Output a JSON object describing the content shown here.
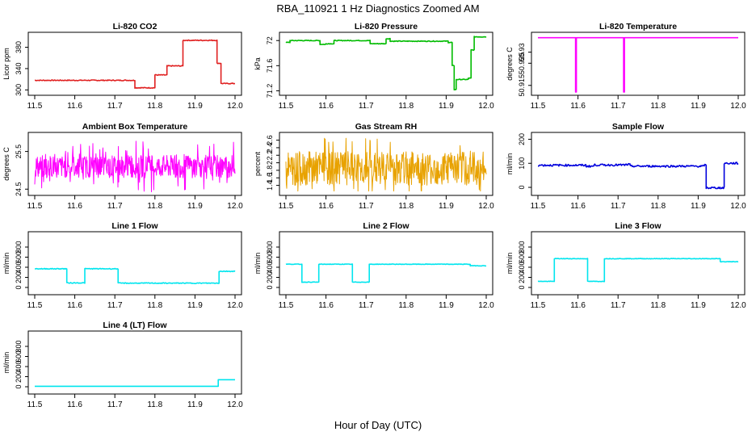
{
  "page": {
    "title": "RBA_110921  1 Hz Diagnostics Zoomed AM",
    "xlabel": "Hour of Day (UTC)"
  },
  "colors": {
    "red": "#e02020",
    "green": "#00bb00",
    "magenta": "#ff00ff",
    "orange": "#e8a200",
    "blue": "#0000dd",
    "cyan": "#00e5ee"
  },
  "chart_data": [
    {
      "type": "line",
      "title": "Li-820 CO2",
      "ylabel": "Licor ppm",
      "color": "#e02020",
      "xlim": [
        11.5,
        12.0
      ],
      "xticks": [
        11.5,
        11.6,
        11.7,
        11.8,
        11.9,
        12.0
      ],
      "ylim": [
        296,
        402
      ],
      "yticks": [
        300,
        340,
        380
      ],
      "series": [
        {
          "kind": "step",
          "noise": 0.8,
          "x": [
            11.5,
            11.75,
            11.8,
            11.83,
            11.87,
            11.955,
            11.965,
            12.0
          ],
          "y": [
            318,
            304,
            328,
            345,
            393,
            350,
            312,
            312
          ]
        }
      ]
    },
    {
      "type": "line",
      "title": "Li-820 Pressure",
      "ylabel": "kPa",
      "color": "#00bb00",
      "xlim": [
        11.5,
        12.0
      ],
      "xticks": [
        11.5,
        11.6,
        11.7,
        11.8,
        11.9,
        12.0
      ],
      "ylim": [
        71.18,
        72.08
      ],
      "yticks": [
        71.2,
        71.6,
        72.0
      ],
      "series": [
        {
          "kind": "step",
          "noise": 0.006,
          "x": [
            11.5,
            11.51,
            11.585,
            11.6,
            11.62,
            11.71,
            11.75,
            11.76,
            11.905,
            11.915,
            11.92,
            11.925,
            11.955,
            11.962,
            11.97,
            12.0
          ],
          "y": [
            71.97,
            72.0,
            71.94,
            71.95,
            72.0,
            71.95,
            72.03,
            71.99,
            71.97,
            71.6,
            71.22,
            71.38,
            71.4,
            71.85,
            72.06,
            72.06
          ]
        }
      ]
    },
    {
      "type": "line",
      "title": "Li-820 Temperature",
      "ylabel": "degrees C",
      "color": "#ff00ff",
      "xlim": [
        11.5,
        12.0
      ],
      "xticks": [
        11.5,
        11.6,
        11.7,
        11.8,
        11.9,
        12.0
      ],
      "ylim": [
        50.912,
        50.9375
      ],
      "yticks": [
        50.915,
        50.925,
        50.93
      ],
      "series": [
        {
          "kind": "step",
          "noise": 0,
          "x": [
            11.5,
            11.594,
            11.596,
            11.714,
            11.716,
            12.0
          ],
          "y": [
            50.9365,
            50.912,
            50.9365,
            50.912,
            50.9365,
            50.9365
          ]
        }
      ]
    },
    {
      "type": "line",
      "title": "Ambient Box Temperature",
      "ylabel": "degrees C",
      "color": "#ff00ff",
      "xlim": [
        11.5,
        12.0
      ],
      "xticks": [
        11.5,
        11.6,
        11.7,
        11.8,
        11.9,
        12.0
      ],
      "ylim": [
        24.42,
        25.92
      ],
      "yticks": [
        24.5,
        25.5
      ],
      "series": [
        {
          "kind": "noise",
          "base": 25.1,
          "amp": 0.3,
          "spike": 0.7,
          "min": 24.42,
          "max": 25.92,
          "x": [
            11.5,
            12.0
          ]
        }
      ]
    },
    {
      "type": "line",
      "title": "Gas Stream RH",
      "ylabel": "percent",
      "color": "#e8a200",
      "xlim": [
        11.5,
        12.0
      ],
      "xticks": [
        11.5,
        11.6,
        11.7,
        11.8,
        11.9,
        12.0
      ],
      "ylim": [
        1.22,
        2.72
      ],
      "yticks": [
        1.4,
        1.6,
        1.8,
        2.0,
        2.2,
        2.4,
        2.6
      ],
      "series": [
        {
          "kind": "noise",
          "base": 1.85,
          "amp": 0.45,
          "spike": 0.85,
          "min": 1.25,
          "max": 2.68,
          "x": [
            11.5,
            12.0
          ]
        }
      ]
    },
    {
      "type": "line",
      "title": "Sample Flow",
      "ylabel": "ml/min",
      "color": "#0000dd",
      "xlim": [
        11.5,
        12.0
      ],
      "xticks": [
        11.5,
        11.6,
        11.7,
        11.8,
        11.9,
        12.0
      ],
      "ylim": [
        -20,
        215
      ],
      "yticks": [
        0,
        100,
        200
      ],
      "series": [
        {
          "kind": "step",
          "noise": 4,
          "x": [
            11.5,
            11.62,
            11.64,
            11.72,
            11.73,
            11.915,
            11.92,
            11.96,
            11.965,
            12.0
          ],
          "y": [
            92,
            88,
            93,
            95,
            88,
            92,
            -2,
            -2,
            100,
            100
          ]
        }
      ]
    },
    {
      "type": "line",
      "title": "Line 1 Flow",
      "ylabel": "ml/min",
      "color": "#00e5ee",
      "xlim": [
        11.5,
        12.0
      ],
      "xticks": [
        11.5,
        11.6,
        11.7,
        11.8,
        11.9,
        12.0
      ],
      "ylim": [
        -80,
        1040
      ],
      "yticks": [
        0,
        200,
        400,
        600,
        800
      ],
      "series": [
        {
          "kind": "step",
          "noise": 8,
          "x": [
            11.5,
            11.58,
            11.625,
            11.708,
            11.955,
            11.96,
            12.0
          ],
          "y": [
            370,
            90,
            370,
            85,
            85,
            320,
            320
          ]
        }
      ]
    },
    {
      "type": "line",
      "title": "Line 2 Flow",
      "ylabel": "ml/min",
      "color": "#00e5ee",
      "xlim": [
        11.5,
        12.0
      ],
      "xticks": [
        11.5,
        11.6,
        11.7,
        11.8,
        11.9,
        12.0
      ],
      "ylim": [
        -80,
        1040
      ],
      "yticks": [
        0,
        200,
        400,
        600,
        800
      ],
      "series": [
        {
          "kind": "step",
          "noise": 5,
          "x": [
            11.5,
            11.54,
            11.582,
            11.666,
            11.708,
            11.96,
            12.0
          ],
          "y": [
            460,
            105,
            460,
            105,
            460,
            430,
            430
          ]
        }
      ]
    },
    {
      "type": "line",
      "title": "Line 3 Flow",
      "ylabel": "ml/min",
      "color": "#00e5ee",
      "xlim": [
        11.5,
        12.0
      ],
      "xticks": [
        11.5,
        11.6,
        11.7,
        11.8,
        11.9,
        12.0
      ],
      "ylim": [
        -80,
        1040
      ],
      "yticks": [
        0,
        200,
        400,
        600,
        800
      ],
      "series": [
        {
          "kind": "step",
          "noise": 5,
          "x": [
            11.5,
            11.541,
            11.624,
            11.666,
            11.955,
            12.0
          ],
          "y": [
            120,
            570,
            120,
            570,
            510,
            510
          ]
        }
      ]
    },
    {
      "type": "line",
      "title": "Line 4 (LT) Flow",
      "ylabel": "ml/min",
      "color": "#00e5ee",
      "xlim": [
        11.5,
        12.0
      ],
      "xticks": [
        11.5,
        11.6,
        11.7,
        11.8,
        11.9,
        12.0
      ],
      "ylim": [
        -80,
        1040
      ],
      "yticks": [
        0,
        200,
        400,
        600,
        800
      ],
      "series": [
        {
          "kind": "step",
          "noise": 0,
          "x": [
            11.5,
            11.958,
            12.0
          ],
          "y": [
            10,
            140,
            140
          ]
        }
      ]
    }
  ]
}
